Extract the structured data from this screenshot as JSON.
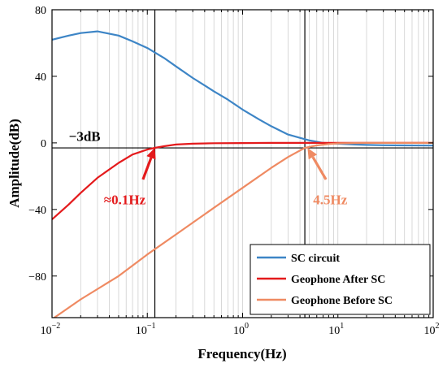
{
  "chart_data": {
    "type": "line",
    "xlabel": "Frequency(Hz)",
    "ylabel": "Amplitude(dB)",
    "xscale": "log",
    "xlim": [
      0.01,
      100
    ],
    "ylim": [
      -105,
      80
    ],
    "x_ticks": [
      {
        "value": 0.01,
        "base": "10",
        "exp": "−2"
      },
      {
        "value": 0.1,
        "base": "10",
        "exp": "−1"
      },
      {
        "value": 1,
        "base": "10",
        "exp": "0"
      },
      {
        "value": 10,
        "base": "10",
        "exp": "1"
      },
      {
        "value": 100,
        "base": "10",
        "exp": "2"
      }
    ],
    "y_ticks": [
      80,
      40,
      0,
      -40,
      -80
    ],
    "y_tick_labels": [
      "80",
      "40",
      "0",
      "−40",
      "−80"
    ],
    "grid": "x-minor",
    "reference_lines": {
      "horizontal_y": -3,
      "vertical_x": [
        0.12,
        4.5
      ]
    },
    "legend": {
      "position": "bottom-right"
    },
    "series": [
      {
        "name": "SC circuit",
        "color": "#3d85c6",
        "x": [
          0.01,
          0.015,
          0.02,
          0.03,
          0.05,
          0.07,
          0.1,
          0.15,
          0.2,
          0.3,
          0.5,
          0.7,
          1,
          1.5,
          2,
          3,
          4,
          5,
          7,
          10,
          15,
          20,
          30,
          50,
          100
        ],
        "y": [
          62,
          64.5,
          66,
          67,
          64.5,
          61,
          57,
          51,
          46,
          39,
          31,
          26,
          20,
          14,
          10,
          5,
          3,
          1.5,
          0,
          -0.5,
          -1,
          -1.2,
          -1.4,
          -1.5,
          -1.6
        ]
      },
      {
        "name": "Geophone After SC",
        "color": "#e41a1c",
        "x": [
          0.01,
          0.015,
          0.02,
          0.03,
          0.05,
          0.07,
          0.1,
          0.12,
          0.15,
          0.2,
          0.3,
          0.5,
          1,
          2,
          5,
          10,
          20,
          50,
          100
        ],
        "y": [
          -46,
          -37,
          -30,
          -21,
          -12,
          -7,
          -4,
          -3,
          -2,
          -1,
          -0.5,
          -0.2,
          -0.1,
          0,
          0,
          0,
          0,
          0,
          0
        ]
      },
      {
        "name": "Geophone Before SC",
        "color": "#ef8a62",
        "x": [
          0.01,
          0.02,
          0.05,
          0.1,
          0.2,
          0.5,
          1,
          2,
          3,
          4.5,
          6,
          8,
          10,
          15,
          20,
          50,
          100
        ],
        "y": [
          -106,
          -94,
          -80,
          -67,
          -55,
          -39,
          -27,
          -15,
          -8.5,
          -3,
          -1.5,
          -0.7,
          -0.3,
          -0.1,
          0,
          0,
          0
        ]
      }
    ],
    "annotations": [
      {
        "text": "−3dB",
        "x": 0.015,
        "y": 4,
        "color": "#000000"
      },
      {
        "text": "≈0.1Hz",
        "x": 0.035,
        "y": -34,
        "color": "#e41a1c",
        "arrow_from": [
          0.09,
          -22
        ],
        "arrow_to": [
          0.12,
          -3
        ]
      },
      {
        "text": "4.5Hz",
        "x": 5.5,
        "y": -34,
        "color": "#ef8a62",
        "arrow_from": [
          7.5,
          -22
        ],
        "arrow_to": [
          4.8,
          -3
        ]
      }
    ]
  }
}
